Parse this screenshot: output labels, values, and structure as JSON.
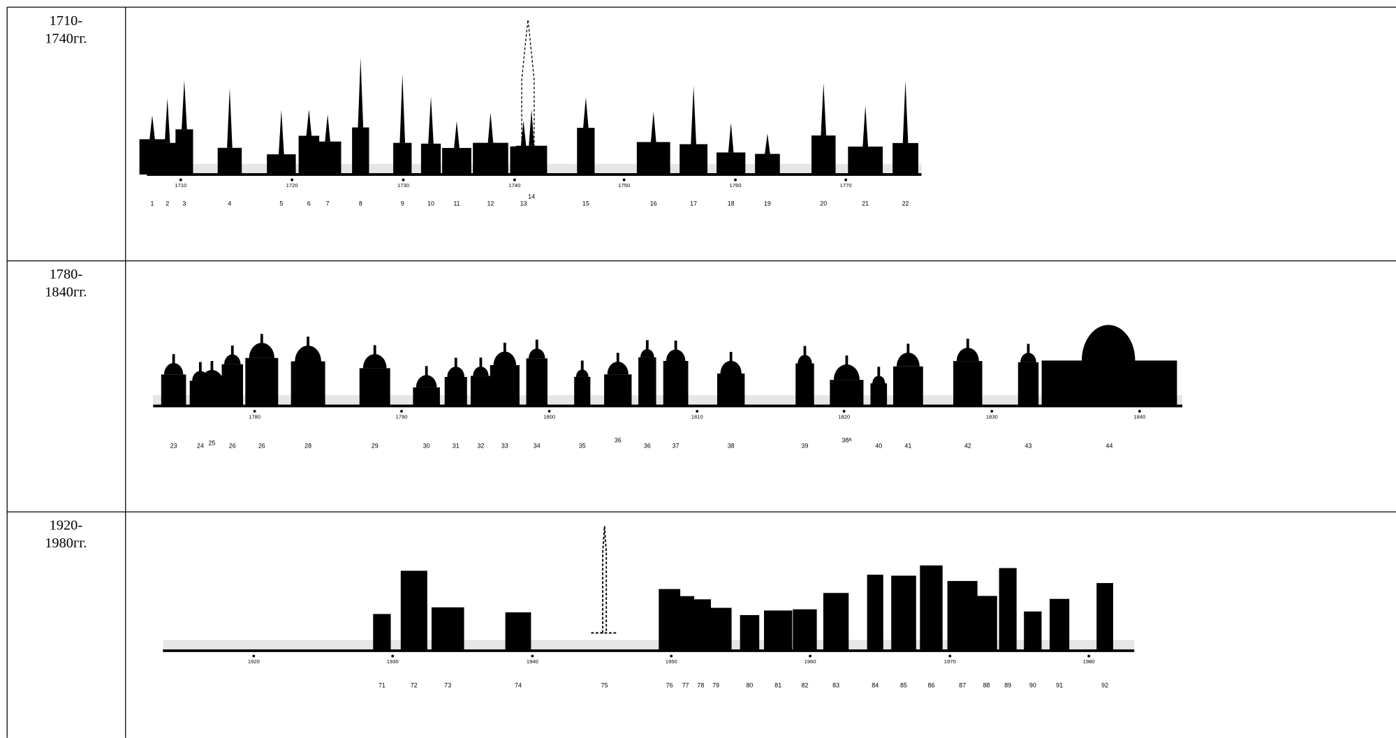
{
  "table": {
    "rows": [
      {
        "period": [
          "1710-",
          "1740гг."
        ],
        "axis_years": [
          "1710",
          "1720",
          "1730",
          "1740",
          "1750",
          "1760",
          "1770"
        ],
        "items": [
          "1",
          "2",
          "3",
          "4",
          "5",
          "6",
          "7",
          "8",
          "9",
          "10",
          "11",
          "12",
          "13",
          "14",
          "15",
          "16",
          "17",
          "18",
          "19",
          "20",
          "21",
          "22"
        ]
      },
      {
        "period": [
          "1780-",
          "1840гг."
        ],
        "axis_years": [
          "1780",
          "1790",
          "1800",
          "1810",
          "1820",
          "1830",
          "1840"
        ],
        "items": [
          "23",
          "24",
          "25",
          "26",
          "26",
          "28",
          "29",
          "30",
          "31",
          "32",
          "33",
          "34",
          "35",
          "36",
          "36",
          "37",
          "38",
          "39",
          "38ᴬ",
          "40",
          "41",
          "42",
          "43",
          "44"
        ]
      },
      {
        "period": [
          "1920-",
          "1980гг."
        ],
        "axis_years": [
          "1920",
          "1930",
          "1940",
          "1950",
          "1960",
          "1970",
          "1980"
        ],
        "items": [
          "71",
          "72",
          "73",
          "74",
          "75",
          "76",
          "77",
          "78",
          "79",
          "80",
          "81",
          "82",
          "83",
          "84",
          "85",
          "86",
          "87",
          "88",
          "89",
          "90",
          "91",
          "92"
        ]
      }
    ]
  }
}
